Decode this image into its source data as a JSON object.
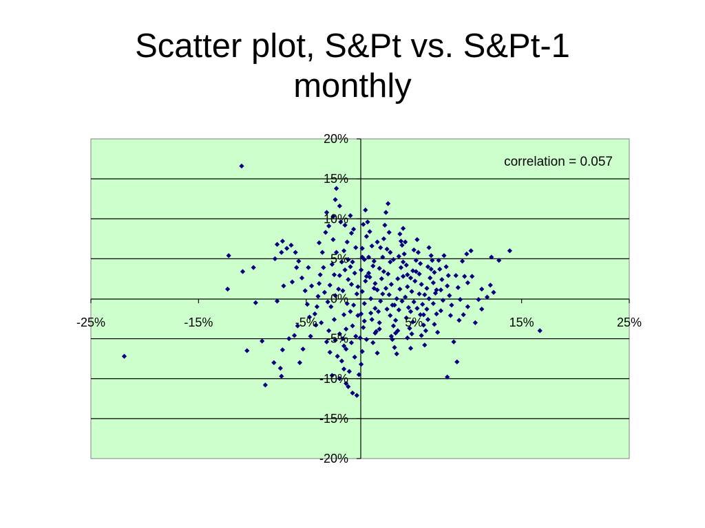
{
  "title_line1": "Scatter plot, S&Pt vs. S&Pt-1",
  "title_line2": "monthly",
  "colors": {
    "plot_background": "#ccffcc",
    "marker": "#000080",
    "gridline": "#000000",
    "title": "#000000"
  },
  "chart_data": {
    "type": "scatter",
    "annotation": "correlation = 0.057",
    "xlim": [
      -0.25,
      0.25
    ],
    "ylim": [
      -0.2,
      0.2
    ],
    "x_ticks": [
      -0.25,
      -0.15,
      -0.05,
      0.05,
      0.15,
      0.25
    ],
    "x_tick_labels": [
      "-25%",
      "-15%",
      "-5%",
      "5%",
      "15%",
      "25%"
    ],
    "y_ticks": [
      0.2,
      0.15,
      0.1,
      0.05,
      0.0,
      -0.05,
      -0.1,
      -0.15,
      -0.2
    ],
    "y_tick_labels": [
      "20%",
      "15%",
      "10%",
      "5%",
      "0%",
      "-5%",
      "-10%",
      "-15%",
      "-20%"
    ],
    "grid": "horizontal major gridlines",
    "marker": "diamond",
    "series": [
      {
        "values": [
          [
            -0.219,
            -0.072
          ],
          [
            -0.11,
            0.166
          ],
          [
            -0.122,
            0.054
          ],
          [
            -0.123,
            0.012
          ],
          [
            -0.109,
            0.034
          ],
          [
            -0.099,
            0.039
          ],
          [
            -0.097,
            -0.005
          ],
          [
            -0.105,
            -0.065
          ],
          [
            -0.088,
            -0.108
          ],
          [
            -0.091,
            -0.053
          ],
          [
            -0.08,
            -0.08
          ],
          [
            -0.074,
            -0.087
          ],
          [
            -0.073,
            -0.097
          ],
          [
            -0.072,
            -0.064
          ],
          [
            -0.066,
            -0.05
          ],
          [
            -0.077,
            -0.003
          ],
          [
            -0.071,
            0.016
          ],
          [
            -0.079,
            0.05
          ],
          [
            -0.077,
            0.068
          ],
          [
            -0.072,
            0.072
          ],
          [
            -0.073,
            0.058
          ],
          [
            -0.068,
            0.063
          ],
          [
            -0.064,
            0.067
          ],
          [
            -0.057,
            0.047
          ],
          [
            -0.06,
            0.058
          ],
          [
            -0.059,
            0.039
          ],
          [
            -0.054,
            0.026
          ],
          [
            -0.051,
            0.01
          ],
          [
            -0.049,
            -0.007
          ],
          [
            -0.047,
            -0.023
          ],
          [
            -0.058,
            -0.034
          ],
          [
            -0.061,
            -0.046
          ],
          [
            -0.056,
            -0.08
          ],
          [
            -0.053,
            -0.063
          ],
          [
            -0.046,
            -0.047
          ],
          [
            -0.042,
            -0.019
          ],
          [
            -0.039,
            0.003
          ],
          [
            -0.038,
            0.019
          ],
          [
            -0.034,
            0.039
          ],
          [
            -0.035,
            0.058
          ],
          [
            -0.038,
            0.07
          ],
          [
            -0.032,
            0.083
          ],
          [
            -0.029,
            0.091
          ],
          [
            -0.031,
            0.108
          ],
          [
            -0.025,
            0.103
          ],
          [
            -0.023,
            0.124
          ],
          [
            -0.022,
            0.138
          ],
          [
            -0.019,
            0.116
          ],
          [
            -0.018,
            0.096
          ],
          [
            -0.025,
            0.074
          ],
          [
            -0.022,
            0.058
          ],
          [
            -0.026,
            0.043
          ],
          [
            -0.024,
            0.03
          ],
          [
            -0.028,
            0.017
          ],
          [
            -0.023,
            0.004
          ],
          [
            -0.027,
            -0.01
          ],
          [
            -0.024,
            -0.026
          ],
          [
            -0.029,
            -0.04
          ],
          [
            -0.023,
            -0.052
          ],
          [
            -0.028,
            -0.067
          ],
          [
            -0.021,
            -0.072
          ],
          [
            -0.017,
            -0.078
          ],
          [
            -0.026,
            -0.096
          ],
          [
            -0.019,
            -0.1
          ],
          [
            -0.015,
            -0.088
          ],
          [
            -0.013,
            -0.063
          ],
          [
            -0.016,
            -0.05
          ],
          [
            -0.013,
            -0.038
          ],
          [
            -0.015,
            -0.02
          ],
          [
            -0.012,
            -0.006
          ],
          [
            -0.016,
            0.01
          ],
          [
            -0.011,
            0.024
          ],
          [
            -0.014,
            0.036
          ],
          [
            -0.011,
            0.049
          ],
          [
            -0.015,
            0.06
          ],
          [
            -0.012,
            0.071
          ],
          [
            -0.008,
            0.082
          ],
          [
            -0.014,
            0.092
          ],
          [
            -0.009,
            0.104
          ],
          [
            -0.006,
            0.087
          ],
          [
            -0.004,
            0.064
          ],
          [
            -0.007,
            0.046
          ],
          [
            -0.005,
            0.032
          ],
          [
            -0.008,
            0.018
          ],
          [
            -0.003,
            0.006
          ],
          [
            -0.006,
            -0.008
          ],
          [
            -0.002,
            -0.021
          ],
          [
            -0.007,
            -0.034
          ],
          [
            -0.004,
            -0.047
          ],
          [
            -0.008,
            -0.055
          ],
          [
            -0.005,
            -0.073
          ],
          [
            -0.01,
            -0.091
          ],
          [
            -0.013,
            -0.106
          ],
          [
            -0.011,
            -0.11
          ],
          [
            -0.007,
            -0.118
          ],
          [
            -0.003,
            -0.121
          ],
          [
            -0.001,
            -0.095
          ],
          [
            0.001,
            -0.082
          ],
          [
            0.002,
            -0.066
          ],
          [
            0.0,
            -0.049
          ],
          [
            0.003,
            -0.036
          ],
          [
            0.001,
            -0.019
          ],
          [
            0.004,
            -0.006
          ],
          [
            0.002,
            0.009
          ],
          [
            0.005,
            0.022
          ],
          [
            0.001,
            0.036
          ],
          [
            0.004,
            0.049
          ],
          [
            0.002,
            0.063
          ],
          [
            0.006,
            0.078
          ],
          [
            0.003,
            0.093
          ],
          [
            0.007,
            0.096
          ],
          [
            0.005,
            0.111
          ],
          [
            0.009,
            0.084
          ],
          [
            0.011,
            0.066
          ],
          [
            0.008,
            0.052
          ],
          [
            0.012,
            0.041
          ],
          [
            0.009,
            0.027
          ],
          [
            0.013,
            0.013
          ],
          [
            0.01,
            0.0
          ],
          [
            0.014,
            -0.012
          ],
          [
            0.011,
            -0.026
          ],
          [
            0.015,
            -0.041
          ],
          [
            0.012,
            -0.055
          ],
          [
            0.016,
            -0.068
          ],
          [
            0.014,
            -0.043
          ],
          [
            0.018,
            -0.03
          ],
          [
            0.017,
            -0.016
          ],
          [
            0.019,
            -0.003
          ],
          [
            0.016,
            0.011
          ],
          [
            0.02,
            0.025
          ],
          [
            0.018,
            0.038
          ],
          [
            0.021,
            0.052
          ],
          [
            0.019,
            0.064
          ],
          [
            0.022,
            0.075
          ],
          [
            0.023,
            0.092
          ],
          [
            0.026,
            0.119
          ],
          [
            0.024,
            0.108
          ],
          [
            0.027,
            0.083
          ],
          [
            0.025,
            0.062
          ],
          [
            0.028,
            0.046
          ],
          [
            0.026,
            0.031
          ],
          [
            0.029,
            0.018
          ],
          [
            0.027,
            0.005
          ],
          [
            0.03,
            -0.008
          ],
          [
            0.028,
            -0.021
          ],
          [
            0.031,
            -0.034
          ],
          [
            0.029,
            -0.047
          ],
          [
            0.032,
            -0.061
          ],
          [
            0.03,
            -0.051
          ],
          [
            0.034,
            -0.069
          ],
          [
            0.035,
            -0.04
          ],
          [
            0.033,
            -0.027
          ],
          [
            0.036,
            -0.014
          ],
          [
            0.034,
            0.0
          ],
          [
            0.037,
            0.012
          ],
          [
            0.035,
            0.025
          ],
          [
            0.038,
            0.039
          ],
          [
            0.036,
            0.053
          ],
          [
            0.039,
            0.067
          ],
          [
            0.037,
            0.081
          ],
          [
            0.04,
            0.088
          ],
          [
            0.042,
            0.071
          ],
          [
            0.041,
            0.056
          ],
          [
            0.043,
            0.042
          ],
          [
            0.04,
            0.028
          ],
          [
            0.044,
            0.015
          ],
          [
            0.042,
            0.002
          ],
          [
            0.045,
            -0.011
          ],
          [
            0.043,
            -0.024
          ],
          [
            0.046,
            -0.037
          ],
          [
            0.044,
            -0.049
          ],
          [
            0.047,
            -0.062
          ],
          [
            0.048,
            -0.044
          ],
          [
            0.049,
            -0.029
          ],
          [
            0.047,
            -0.016
          ],
          [
            0.05,
            -0.004
          ],
          [
            0.048,
            0.009
          ],
          [
            0.051,
            0.022
          ],
          [
            0.049,
            0.035
          ],
          [
            0.052,
            0.048
          ],
          [
            0.05,
            0.061
          ],
          [
            0.053,
            0.074
          ],
          [
            0.054,
            0.058
          ],
          [
            0.056,
            0.044
          ],
          [
            0.055,
            0.031
          ],
          [
            0.057,
            0.018
          ],
          [
            0.055,
            0.006
          ],
          [
            0.058,
            -0.007
          ],
          [
            0.056,
            -0.02
          ],
          [
            0.059,
            -0.033
          ],
          [
            0.057,
            -0.046
          ],
          [
            0.06,
            -0.058
          ],
          [
            0.061,
            -0.04
          ],
          [
            0.063,
            -0.026
          ],
          [
            0.062,
            -0.013
          ],
          [
            0.064,
            0.0
          ],
          [
            0.062,
            0.013
          ],
          [
            0.065,
            0.026
          ],
          [
            0.063,
            0.04
          ],
          [
            0.066,
            0.054
          ],
          [
            0.064,
            0.064
          ],
          [
            0.067,
            0.048
          ],
          [
            0.069,
            0.033
          ],
          [
            0.068,
            0.02
          ],
          [
            0.07,
            0.007
          ],
          [
            0.068,
            -0.006
          ],
          [
            0.071,
            -0.019
          ],
          [
            0.069,
            -0.032
          ],
          [
            0.072,
            -0.042
          ],
          [
            0.073,
            0.048
          ],
          [
            0.074,
            0.037
          ],
          [
            0.076,
            0.024
          ],
          [
            0.075,
            0.011
          ],
          [
            0.077,
            -0.002
          ],
          [
            0.075,
            -0.015
          ],
          [
            0.078,
            0.054
          ],
          [
            0.08,
            0.04
          ],
          [
            0.082,
            0.029
          ],
          [
            0.081,
            0.016
          ],
          [
            0.083,
            0.004
          ],
          [
            0.085,
            -0.008
          ],
          [
            0.084,
            -0.021
          ],
          [
            0.087,
            -0.054
          ],
          [
            0.089,
            0.029
          ],
          [
            0.091,
            0.014
          ],
          [
            0.093,
            -0.001
          ],
          [
            0.095,
            0.047
          ],
          [
            0.097,
            0.028
          ],
          [
            0.1,
            0.02
          ],
          [
            0.099,
            0.056
          ],
          [
            0.103,
            0.06
          ],
          [
            0.104,
            0.028
          ],
          [
            0.1,
            -0.01
          ],
          [
            0.092,
            -0.027
          ],
          [
            0.09,
            -0.079
          ],
          [
            0.081,
            -0.098
          ],
          [
            0.107,
            -0.03
          ],
          [
            0.11,
            -0.001
          ],
          [
            0.113,
            0.012
          ],
          [
            0.118,
            0.002
          ],
          [
            0.121,
            0.017
          ],
          [
            0.122,
            0.052
          ],
          [
            0.129,
            0.048
          ],
          [
            0.124,
            0.008
          ],
          [
            0.139,
            0.06
          ],
          [
            0.167,
            -0.04
          ],
          [
            0.113,
            -0.013
          ],
          [
            0.096,
            -0.02
          ],
          [
            0.059,
            -0.02
          ],
          [
            0.032,
            -0.008
          ],
          [
            0.021,
            0.006
          ],
          [
            0.014,
            0.019
          ],
          [
            0.006,
            0.028
          ],
          [
            0.022,
            0.034
          ],
          [
            0.044,
            0.03
          ],
          [
            0.039,
            -0.003
          ],
          [
            0.025,
            -0.013
          ],
          [
            0.01,
            -0.018
          ],
          [
            -0.002,
            0.015
          ],
          [
            -0.019,
            0.029
          ],
          [
            -0.033,
            0.008
          ],
          [
            -0.04,
            -0.01
          ],
          [
            -0.045,
            0.016
          ],
          [
            -0.036,
            -0.03
          ],
          [
            -0.019,
            -0.044
          ],
          [
            0.013,
            0.047
          ],
          [
            0.028,
            0.058
          ],
          [
            0.047,
            0.026
          ],
          [
            0.06,
            0.005
          ],
          [
            0.053,
            -0.012
          ],
          [
            0.04,
            0.046
          ],
          [
            0.016,
            0.071
          ],
          [
            0.002,
            0.052
          ],
          [
            -0.009,
            0.04
          ],
          [
            -0.02,
            0.012
          ],
          [
            -0.03,
            -0.004
          ],
          [
            -0.009,
            -0.016
          ],
          [
            0.004,
            -0.028
          ],
          [
            0.018,
            -0.038
          ],
          [
            0.033,
            -0.043
          ],
          [
            0.052,
            0.034
          ],
          [
            0.066,
            0.037
          ],
          [
            0.071,
            0.011
          ],
          [
            0.038,
            0.072
          ],
          [
            0.031,
            0.049
          ],
          [
            0.024,
            0.013
          ],
          [
            0.008,
            0.032
          ],
          [
            -0.017,
            0.046
          ],
          [
            -0.037,
            0.03
          ],
          [
            -0.048,
            0.039
          ],
          [
            -0.063,
            0.021
          ],
          [
            -0.041,
            -0.033
          ],
          [
            -0.031,
            -0.054
          ],
          [
            -0.015,
            -0.059
          ],
          [
            0.006,
            -0.051
          ]
        ]
      }
    ]
  }
}
